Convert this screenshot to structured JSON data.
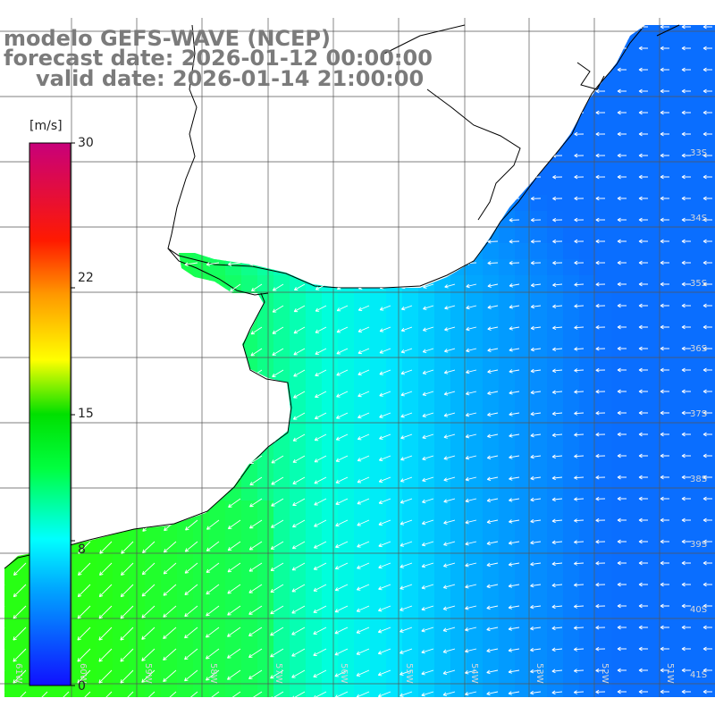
{
  "title": {
    "line1": "modelo GEFS-WAVE (NCEP)",
    "line2": "forecast date: 2026-01-12 00:00:00",
    "line3": "valid date: 2026-01-14 21:00:00"
  },
  "colorbar": {
    "units": "[m/s]",
    "ticks": [
      {
        "label": "30",
        "value": 30
      },
      {
        "label": "22",
        "value": 22
      },
      {
        "label": "15",
        "value": 15
      },
      {
        "label": "8",
        "value": 8
      },
      {
        "label": "0",
        "value": 0
      }
    ],
    "range": [
      0,
      30
    ],
    "colors": [
      "#1010ff",
      "#00b0ff",
      "#00ffff",
      "#00ff00",
      "#ffff00",
      "#ff9900",
      "#ff0000",
      "#cc0077"
    ]
  },
  "map": {
    "land_color": "#ffffff",
    "coastline_color": "#000000",
    "grid_color": "#555555",
    "arrow_color": "#ffffff",
    "lat_labels": [
      "33S",
      "34S",
      "35S",
      "36S",
      "37S",
      "38S",
      "39S",
      "40S",
      "41S"
    ],
    "lon_labels": [
      "61W",
      "60W",
      "59W",
      "58W",
      "57W",
      "56W",
      "55W",
      "54W",
      "53W",
      "52W",
      "51W"
    ]
  }
}
